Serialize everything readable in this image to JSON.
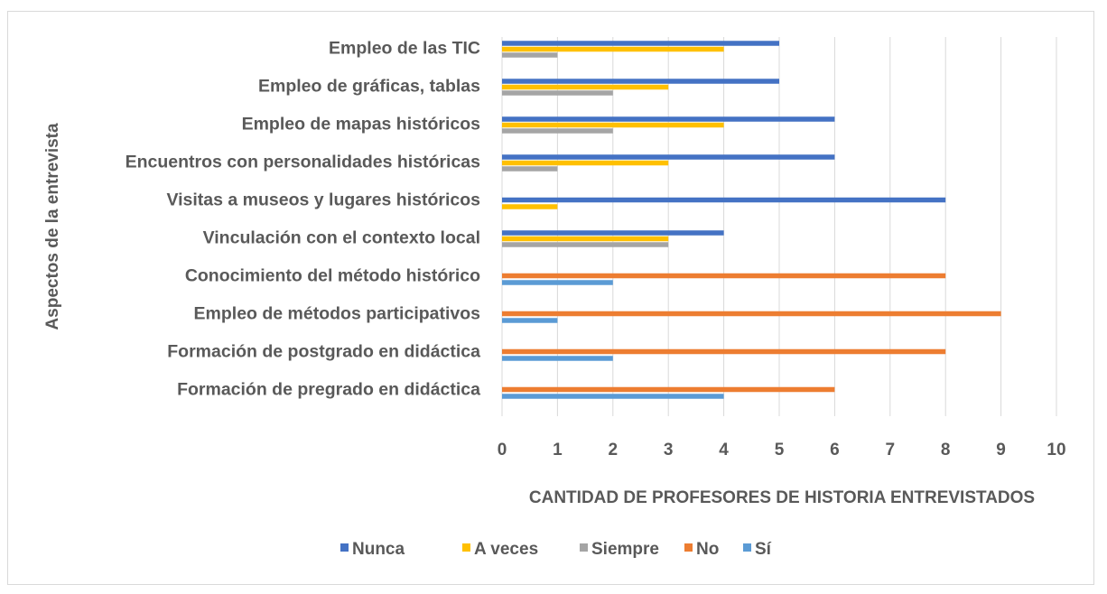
{
  "chart_data": {
    "type": "bar",
    "orientation": "horizontal",
    "categories": [
      "Empleo de las TIC",
      "Empleo de gráficas, tablas ",
      "Empleo de mapas históricos",
      "Encuentros con personalidades históricas",
      "Visitas a museos y lugares históricos",
      "Vinculación con el contexto local",
      "Conocimiento del método histórico",
      "Empleo de métodos participativos",
      "Formación de postgrado en didáctica",
      "Formación de pregrado en didáctica"
    ],
    "series": [
      {
        "name": "Nunca",
        "color": "#4472c4",
        "values": [
          5,
          5,
          6,
          6,
          8,
          4,
          null,
          null,
          null,
          null
        ]
      },
      {
        "name": "A veces",
        "color": "#ffc000",
        "values": [
          4,
          3,
          4,
          3,
          1,
          3,
          null,
          null,
          null,
          null
        ]
      },
      {
        "name": "Siempre",
        "color": "#a5a5a5",
        "values": [
          1,
          2,
          2,
          1,
          null,
          3,
          null,
          null,
          null,
          null
        ]
      },
      {
        "name": "No",
        "color": "#ed7d31",
        "values": [
          null,
          null,
          null,
          null,
          null,
          null,
          8,
          9,
          8,
          6
        ]
      },
      {
        "name": "Sí",
        "color": "#5b9bd5",
        "values": [
          null,
          null,
          null,
          null,
          null,
          null,
          2,
          1,
          2,
          4
        ]
      }
    ],
    "xlabel": "CANTIDAD DE PROFESORES DE HISTORIA ENTREVISTADOS",
    "ylabel": "Aspectos de la entrevista",
    "xlim": [
      0,
      10
    ],
    "xticks": [
      "0",
      "1",
      "2",
      "3",
      "4",
      "5",
      "6",
      "7",
      "8",
      "9",
      "10"
    ],
    "grid": true,
    "legend": "bottom"
  }
}
